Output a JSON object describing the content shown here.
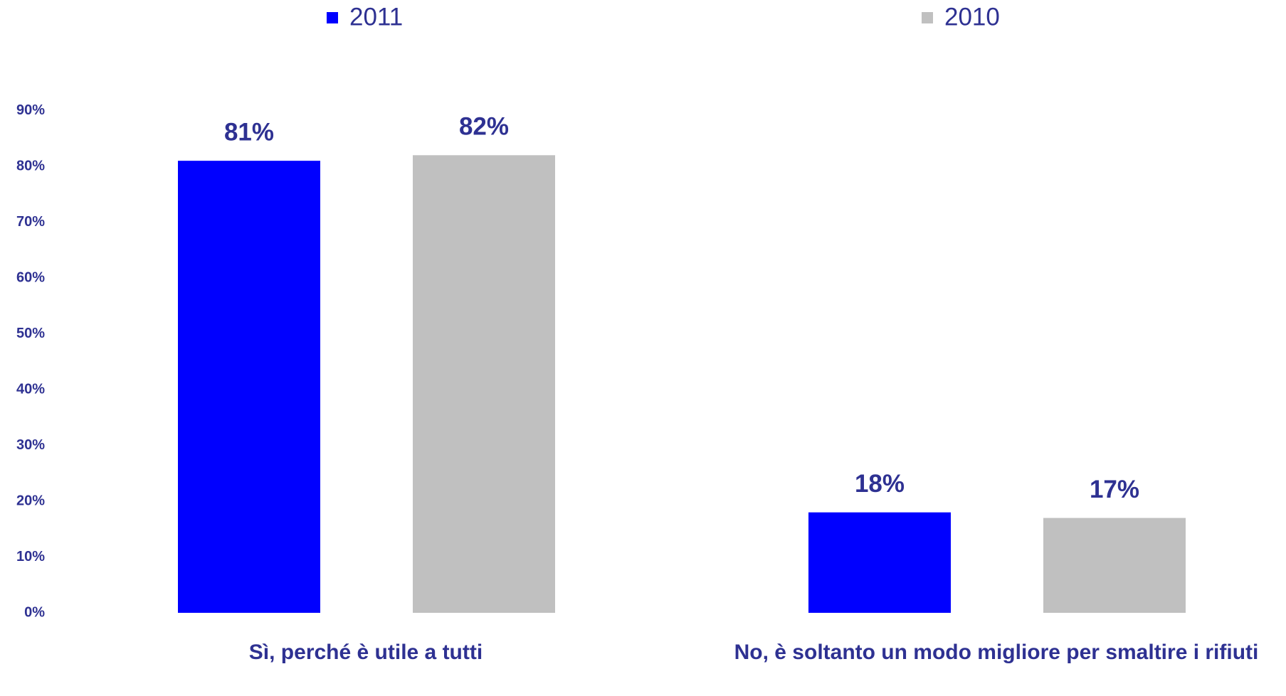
{
  "chart_data": {
    "type": "bar",
    "categories": [
      "Sì, perché è utile a tutti",
      "No, è soltanto un modo migliore per smaltire i rifiuti"
    ],
    "series": [
      {
        "name": "2011",
        "color": "#0000ff",
        "values": [
          81,
          18
        ],
        "value_labels": [
          "81%",
          "18%"
        ]
      },
      {
        "name": "2010",
        "color": "#c0c0c0",
        "values": [
          82,
          17
        ],
        "value_labels": [
          "82%",
          "17%"
        ]
      }
    ],
    "ylim": [
      0,
      90
    ],
    "yticks": [
      {
        "value": 0,
        "label": "0%"
      },
      {
        "value": 10,
        "label": "10%"
      },
      {
        "value": 20,
        "label": "20%"
      },
      {
        "value": 30,
        "label": "30%"
      },
      {
        "value": 40,
        "label": "40%"
      },
      {
        "value": 50,
        "label": "50%"
      },
      {
        "value": 60,
        "label": "60%"
      },
      {
        "value": 70,
        "label": "70%"
      },
      {
        "value": 80,
        "label": "80%"
      },
      {
        "value": 90,
        "label": "90%"
      }
    ],
    "grid": false
  }
}
